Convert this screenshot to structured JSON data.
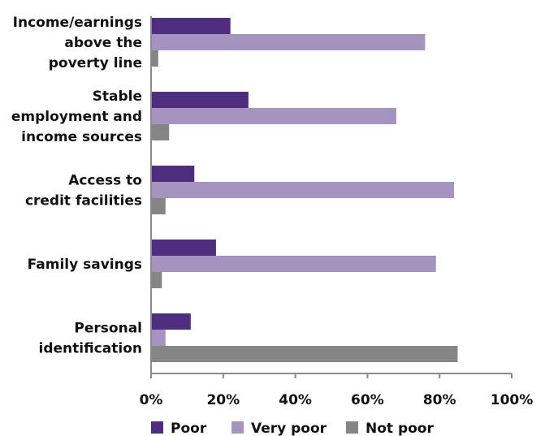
{
  "chart_data": {
    "type": "bar",
    "orientation": "horizontal",
    "categories": [
      [
        "Income/earnings",
        "above the",
        "poverty line"
      ],
      [
        "Stable",
        "employment and",
        "income sources"
      ],
      [
        "Access to",
        "credit facilities"
      ],
      [
        "Family savings"
      ],
      [
        "Personal",
        "identification"
      ]
    ],
    "series": [
      {
        "name": "Poor",
        "color": "#4f2d7f",
        "values": [
          22,
          27,
          12,
          18,
          11
        ]
      },
      {
        "name": "Very poor",
        "color": "#a494bf",
        "values": [
          76,
          68,
          84,
          79,
          4
        ]
      },
      {
        "name": "Not poor",
        "color": "#858585",
        "values": [
          2,
          5,
          4,
          3,
          85
        ]
      }
    ],
    "xlim": [
      0,
      100
    ],
    "xticks": [
      "0%",
      "20%",
      "40%",
      "60%",
      "80%",
      "100%"
    ],
    "legend_position": "bottom",
    "grid": false
  }
}
